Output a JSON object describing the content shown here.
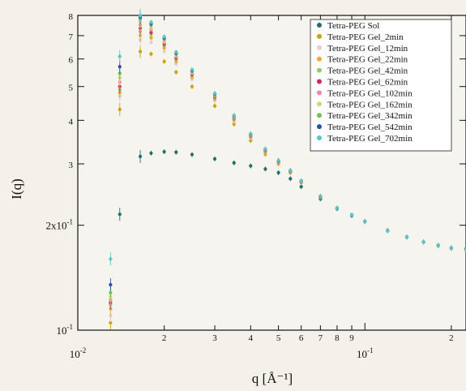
{
  "chart_data": {
    "type": "scatter",
    "title": "",
    "xlabel": "q [Å⁻¹]",
    "ylabel": "I(q)",
    "x_scale": "log",
    "y_scale": "log",
    "xlim": [
      0.01,
      0.225
    ],
    "ylim": [
      0.1,
      0.8
    ],
    "grid": false,
    "legend_position": "top-right",
    "x_ticks": [
      {
        "value": 0.01,
        "label": "10",
        "sup": "-2",
        "major": true
      },
      {
        "value": 0.02,
        "label": "2",
        "sup": "",
        "major": false
      },
      {
        "value": 0.03,
        "label": "3",
        "sup": "",
        "major": false
      },
      {
        "value": 0.04,
        "label": "4",
        "sup": "",
        "major": false
      },
      {
        "value": 0.05,
        "label": "5",
        "sup": "",
        "major": false
      },
      {
        "value": 0.06,
        "label": "6",
        "sup": "",
        "major": false
      },
      {
        "value": 0.07,
        "label": "7",
        "sup": "",
        "major": false
      },
      {
        "value": 0.08,
        "label": "8",
        "sup": "",
        "major": false
      },
      {
        "value": 0.09,
        "label": "9",
        "sup": "",
        "major": false
      },
      {
        "value": 0.1,
        "label": "10",
        "sup": "-1",
        "major": true
      },
      {
        "value": 0.2,
        "label": "2",
        "sup": "",
        "major": false
      }
    ],
    "y_ticks": [
      {
        "value": 0.1,
        "label": "10",
        "sup": "-1"
      },
      {
        "value": 0.2,
        "label": "2x10",
        "sup": "-1"
      },
      {
        "value": 0.3,
        "label": "3",
        "sup": ""
      },
      {
        "value": 0.4,
        "label": "4",
        "sup": ""
      },
      {
        "value": 0.5,
        "label": "5",
        "sup": ""
      },
      {
        "value": 0.6,
        "label": "6",
        "sup": ""
      },
      {
        "value": 0.7,
        "label": "7",
        "sup": ""
      },
      {
        "value": 0.8,
        "label": "8",
        "sup": ""
      }
    ],
    "series": [
      {
        "name": "Tetra-PEG Sol",
        "color": "#1f6f6a",
        "points": [
          [
            0.014,
            0.215
          ],
          [
            0.0165,
            0.315
          ],
          [
            0.018,
            0.322
          ],
          [
            0.02,
            0.325
          ],
          [
            0.022,
            0.324
          ],
          [
            0.025,
            0.319
          ],
          [
            0.03,
            0.31
          ],
          [
            0.035,
            0.302
          ],
          [
            0.04,
            0.296
          ],
          [
            0.045,
            0.29
          ],
          [
            0.05,
            0.283
          ],
          [
            0.055,
            0.272
          ],
          [
            0.06,
            0.258
          ],
          [
            0.07,
            0.238
          ],
          [
            0.08,
            0.223
          ],
          [
            0.09,
            0.213
          ],
          [
            0.1,
            0.205
          ],
          [
            0.12,
            0.193
          ],
          [
            0.14,
            0.185
          ],
          [
            0.16,
            0.179
          ],
          [
            0.18,
            0.175
          ],
          [
            0.2,
            0.172
          ],
          [
            0.225,
            0.171
          ]
        ]
      },
      {
        "name": "Tetra-PEG Gel_2min",
        "color": "#c9a400",
        "points": [
          [
            0.013,
            0.105
          ],
          [
            0.014,
            0.43
          ],
          [
            0.0165,
            0.63
          ],
          [
            0.018,
            0.62
          ],
          [
            0.02,
            0.59
          ],
          [
            0.022,
            0.55
          ],
          [
            0.025,
            0.5
          ],
          [
            0.03,
            0.44
          ],
          [
            0.035,
            0.39
          ],
          [
            0.04,
            0.35
          ],
          [
            0.045,
            0.32
          ],
          [
            0.05,
            0.3
          ],
          [
            0.055,
            0.283
          ],
          [
            0.06,
            0.265
          ],
          [
            0.07,
            0.24
          ],
          [
            0.08,
            0.224
          ],
          [
            0.09,
            0.214
          ],
          [
            0.1,
            0.205
          ],
          [
            0.12,
            0.193
          ],
          [
            0.14,
            0.185
          ],
          [
            0.16,
            0.179
          ],
          [
            0.18,
            0.175
          ],
          [
            0.2,
            0.172
          ],
          [
            0.225,
            0.17
          ]
        ]
      },
      {
        "name": "Tetra-PEG Gel_12min",
        "color": "#e5c9dc",
        "points": [
          [
            0.013,
            0.11
          ],
          [
            0.014,
            0.47
          ],
          [
            0.0165,
            0.68
          ],
          [
            0.018,
            0.67
          ],
          [
            0.02,
            0.63
          ],
          [
            0.022,
            0.58
          ],
          [
            0.025,
            0.525
          ],
          [
            0.03,
            0.455
          ],
          [
            0.035,
            0.398
          ],
          [
            0.04,
            0.356
          ],
          [
            0.045,
            0.324
          ],
          [
            0.05,
            0.302
          ],
          [
            0.055,
            0.284
          ],
          [
            0.06,
            0.266
          ],
          [
            0.07,
            0.241
          ],
          [
            0.08,
            0.224
          ],
          [
            0.09,
            0.214
          ],
          [
            0.1,
            0.205
          ],
          [
            0.12,
            0.193
          ],
          [
            0.14,
            0.185
          ],
          [
            0.16,
            0.179
          ],
          [
            0.18,
            0.175
          ],
          [
            0.2,
            0.172
          ],
          [
            0.225,
            0.17
          ]
        ]
      },
      {
        "name": "Tetra-PEG Gel_22min",
        "color": "#f0a830",
        "points": [
          [
            0.013,
            0.115
          ],
          [
            0.014,
            0.48
          ],
          [
            0.0165,
            0.7
          ],
          [
            0.018,
            0.69
          ],
          [
            0.02,
            0.645
          ],
          [
            0.022,
            0.59
          ],
          [
            0.025,
            0.532
          ],
          [
            0.03,
            0.46
          ],
          [
            0.035,
            0.401
          ],
          [
            0.04,
            0.358
          ],
          [
            0.045,
            0.325
          ],
          [
            0.05,
            0.303
          ],
          [
            0.055,
            0.285
          ],
          [
            0.06,
            0.267
          ],
          [
            0.07,
            0.241
          ],
          [
            0.08,
            0.224
          ],
          [
            0.09,
            0.214
          ],
          [
            0.1,
            0.205
          ],
          [
            0.12,
            0.193
          ],
          [
            0.14,
            0.185
          ],
          [
            0.16,
            0.179
          ],
          [
            0.18,
            0.175
          ],
          [
            0.2,
            0.172
          ],
          [
            0.225,
            0.17
          ]
        ]
      },
      {
        "name": "Tetra-PEG Gel_42min",
        "color": "#8fcf6a",
        "points": [
          [
            0.013,
            0.118
          ],
          [
            0.014,
            0.49
          ],
          [
            0.0165,
            0.72
          ],
          [
            0.018,
            0.705
          ],
          [
            0.02,
            0.655
          ],
          [
            0.022,
            0.598
          ],
          [
            0.025,
            0.538
          ],
          [
            0.03,
            0.464
          ],
          [
            0.035,
            0.404
          ],
          [
            0.04,
            0.36
          ],
          [
            0.045,
            0.326
          ],
          [
            0.05,
            0.304
          ],
          [
            0.055,
            0.285
          ],
          [
            0.06,
            0.267
          ],
          [
            0.07,
            0.241
          ],
          [
            0.08,
            0.224
          ],
          [
            0.09,
            0.214
          ],
          [
            0.1,
            0.205
          ],
          [
            0.12,
            0.193
          ],
          [
            0.14,
            0.185
          ],
          [
            0.16,
            0.179
          ],
          [
            0.18,
            0.175
          ],
          [
            0.2,
            0.172
          ],
          [
            0.225,
            0.17
          ]
        ]
      },
      {
        "name": "Tetra-PEG Gel_62min",
        "color": "#cc2a5a",
        "points": [
          [
            0.013,
            0.12
          ],
          [
            0.014,
            0.5
          ],
          [
            0.0165,
            0.735
          ],
          [
            0.018,
            0.715
          ],
          [
            0.02,
            0.662
          ],
          [
            0.022,
            0.604
          ],
          [
            0.025,
            0.542
          ],
          [
            0.03,
            0.467
          ],
          [
            0.035,
            0.406
          ],
          [
            0.04,
            0.361
          ],
          [
            0.045,
            0.327
          ],
          [
            0.05,
            0.304
          ],
          [
            0.055,
            0.285
          ],
          [
            0.06,
            0.267
          ],
          [
            0.07,
            0.241
          ],
          [
            0.08,
            0.224
          ],
          [
            0.09,
            0.214
          ],
          [
            0.1,
            0.205
          ],
          [
            0.12,
            0.193
          ],
          [
            0.14,
            0.185
          ],
          [
            0.16,
            0.179
          ],
          [
            0.18,
            0.175
          ],
          [
            0.2,
            0.172
          ],
          [
            0.225,
            0.17
          ]
        ]
      },
      {
        "name": "Tetra-PEG Gel_102min",
        "color": "#f08a9a",
        "points": [
          [
            0.013,
            0.122
          ],
          [
            0.014,
            0.515
          ],
          [
            0.0165,
            0.75
          ],
          [
            0.018,
            0.728
          ],
          [
            0.02,
            0.67
          ],
          [
            0.022,
            0.61
          ],
          [
            0.025,
            0.546
          ],
          [
            0.03,
            0.47
          ],
          [
            0.035,
            0.408
          ],
          [
            0.04,
            0.362
          ],
          [
            0.045,
            0.328
          ],
          [
            0.05,
            0.305
          ],
          [
            0.055,
            0.286
          ],
          [
            0.06,
            0.268
          ],
          [
            0.07,
            0.242
          ],
          [
            0.08,
            0.224
          ],
          [
            0.09,
            0.214
          ],
          [
            0.1,
            0.205
          ],
          [
            0.12,
            0.193
          ],
          [
            0.14,
            0.185
          ],
          [
            0.16,
            0.179
          ],
          [
            0.18,
            0.175
          ],
          [
            0.2,
            0.172
          ],
          [
            0.225,
            0.17
          ]
        ]
      },
      {
        "name": "Tetra-PEG Gel_162min",
        "color": "#d9d07a",
        "points": [
          [
            0.013,
            0.125
          ],
          [
            0.014,
            0.53
          ],
          [
            0.0165,
            0.765
          ],
          [
            0.018,
            0.738
          ],
          [
            0.02,
            0.676
          ],
          [
            0.022,
            0.615
          ],
          [
            0.025,
            0.549
          ],
          [
            0.03,
            0.472
          ],
          [
            0.035,
            0.409
          ],
          [
            0.04,
            0.363
          ],
          [
            0.045,
            0.329
          ],
          [
            0.05,
            0.305
          ],
          [
            0.055,
            0.286
          ],
          [
            0.06,
            0.268
          ],
          [
            0.07,
            0.242
          ],
          [
            0.08,
            0.224
          ],
          [
            0.09,
            0.214
          ],
          [
            0.1,
            0.205
          ],
          [
            0.12,
            0.193
          ],
          [
            0.14,
            0.185
          ],
          [
            0.16,
            0.179
          ],
          [
            0.18,
            0.175
          ],
          [
            0.2,
            0.172
          ],
          [
            0.225,
            0.17
          ]
        ]
      },
      {
        "name": "Tetra-PEG Gel_342min",
        "color": "#6cc64a",
        "points": [
          [
            0.013,
            0.128
          ],
          [
            0.014,
            0.545
          ],
          [
            0.0165,
            0.78
          ],
          [
            0.018,
            0.75
          ],
          [
            0.02,
            0.684
          ],
          [
            0.022,
            0.62
          ],
          [
            0.025,
            0.553
          ],
          [
            0.03,
            0.474
          ],
          [
            0.035,
            0.411
          ],
          [
            0.04,
            0.364
          ],
          [
            0.045,
            0.33
          ],
          [
            0.05,
            0.306
          ],
          [
            0.055,
            0.286
          ],
          [
            0.06,
            0.268
          ],
          [
            0.07,
            0.242
          ],
          [
            0.08,
            0.224
          ],
          [
            0.09,
            0.214
          ],
          [
            0.1,
            0.205
          ],
          [
            0.12,
            0.193
          ],
          [
            0.14,
            0.185
          ],
          [
            0.16,
            0.179
          ],
          [
            0.18,
            0.175
          ],
          [
            0.2,
            0.172
          ],
          [
            0.225,
            0.17
          ]
        ]
      },
      {
        "name": "Tetra-PEG Gel_542min",
        "color": "#2a4fa8",
        "points": [
          [
            0.013,
            0.135
          ],
          [
            0.014,
            0.57
          ],
          [
            0.0165,
            0.79
          ],
          [
            0.018,
            0.758
          ],
          [
            0.02,
            0.69
          ],
          [
            0.022,
            0.624
          ],
          [
            0.025,
            0.556
          ],
          [
            0.03,
            0.476
          ],
          [
            0.035,
            0.412
          ],
          [
            0.04,
            0.365
          ],
          [
            0.045,
            0.33
          ],
          [
            0.05,
            0.306
          ],
          [
            0.055,
            0.287
          ],
          [
            0.06,
            0.268
          ],
          [
            0.07,
            0.242
          ],
          [
            0.08,
            0.224
          ],
          [
            0.09,
            0.214
          ],
          [
            0.1,
            0.205
          ],
          [
            0.12,
            0.193
          ],
          [
            0.14,
            0.185
          ],
          [
            0.16,
            0.179
          ],
          [
            0.18,
            0.175
          ],
          [
            0.2,
            0.172
          ],
          [
            0.225,
            0.17
          ]
        ]
      },
      {
        "name": "Tetra-PEG Gel_702min",
        "color": "#5cc6c6",
        "points": [
          [
            0.013,
            0.16
          ],
          [
            0.014,
            0.61
          ],
          [
            0.0165,
            0.8
          ],
          [
            0.018,
            0.765
          ],
          [
            0.02,
            0.695
          ],
          [
            0.022,
            0.628
          ],
          [
            0.025,
            0.559
          ],
          [
            0.03,
            0.478
          ],
          [
            0.035,
            0.413
          ],
          [
            0.04,
            0.366
          ],
          [
            0.045,
            0.331
          ],
          [
            0.05,
            0.307
          ],
          [
            0.055,
            0.287
          ],
          [
            0.06,
            0.268
          ],
          [
            0.07,
            0.242
          ],
          [
            0.08,
            0.224
          ],
          [
            0.09,
            0.214
          ],
          [
            0.1,
            0.205
          ],
          [
            0.12,
            0.193
          ],
          [
            0.14,
            0.185
          ],
          [
            0.16,
            0.179
          ],
          [
            0.18,
            0.175
          ],
          [
            0.2,
            0.172
          ],
          [
            0.225,
            0.17
          ]
        ]
      }
    ]
  }
}
